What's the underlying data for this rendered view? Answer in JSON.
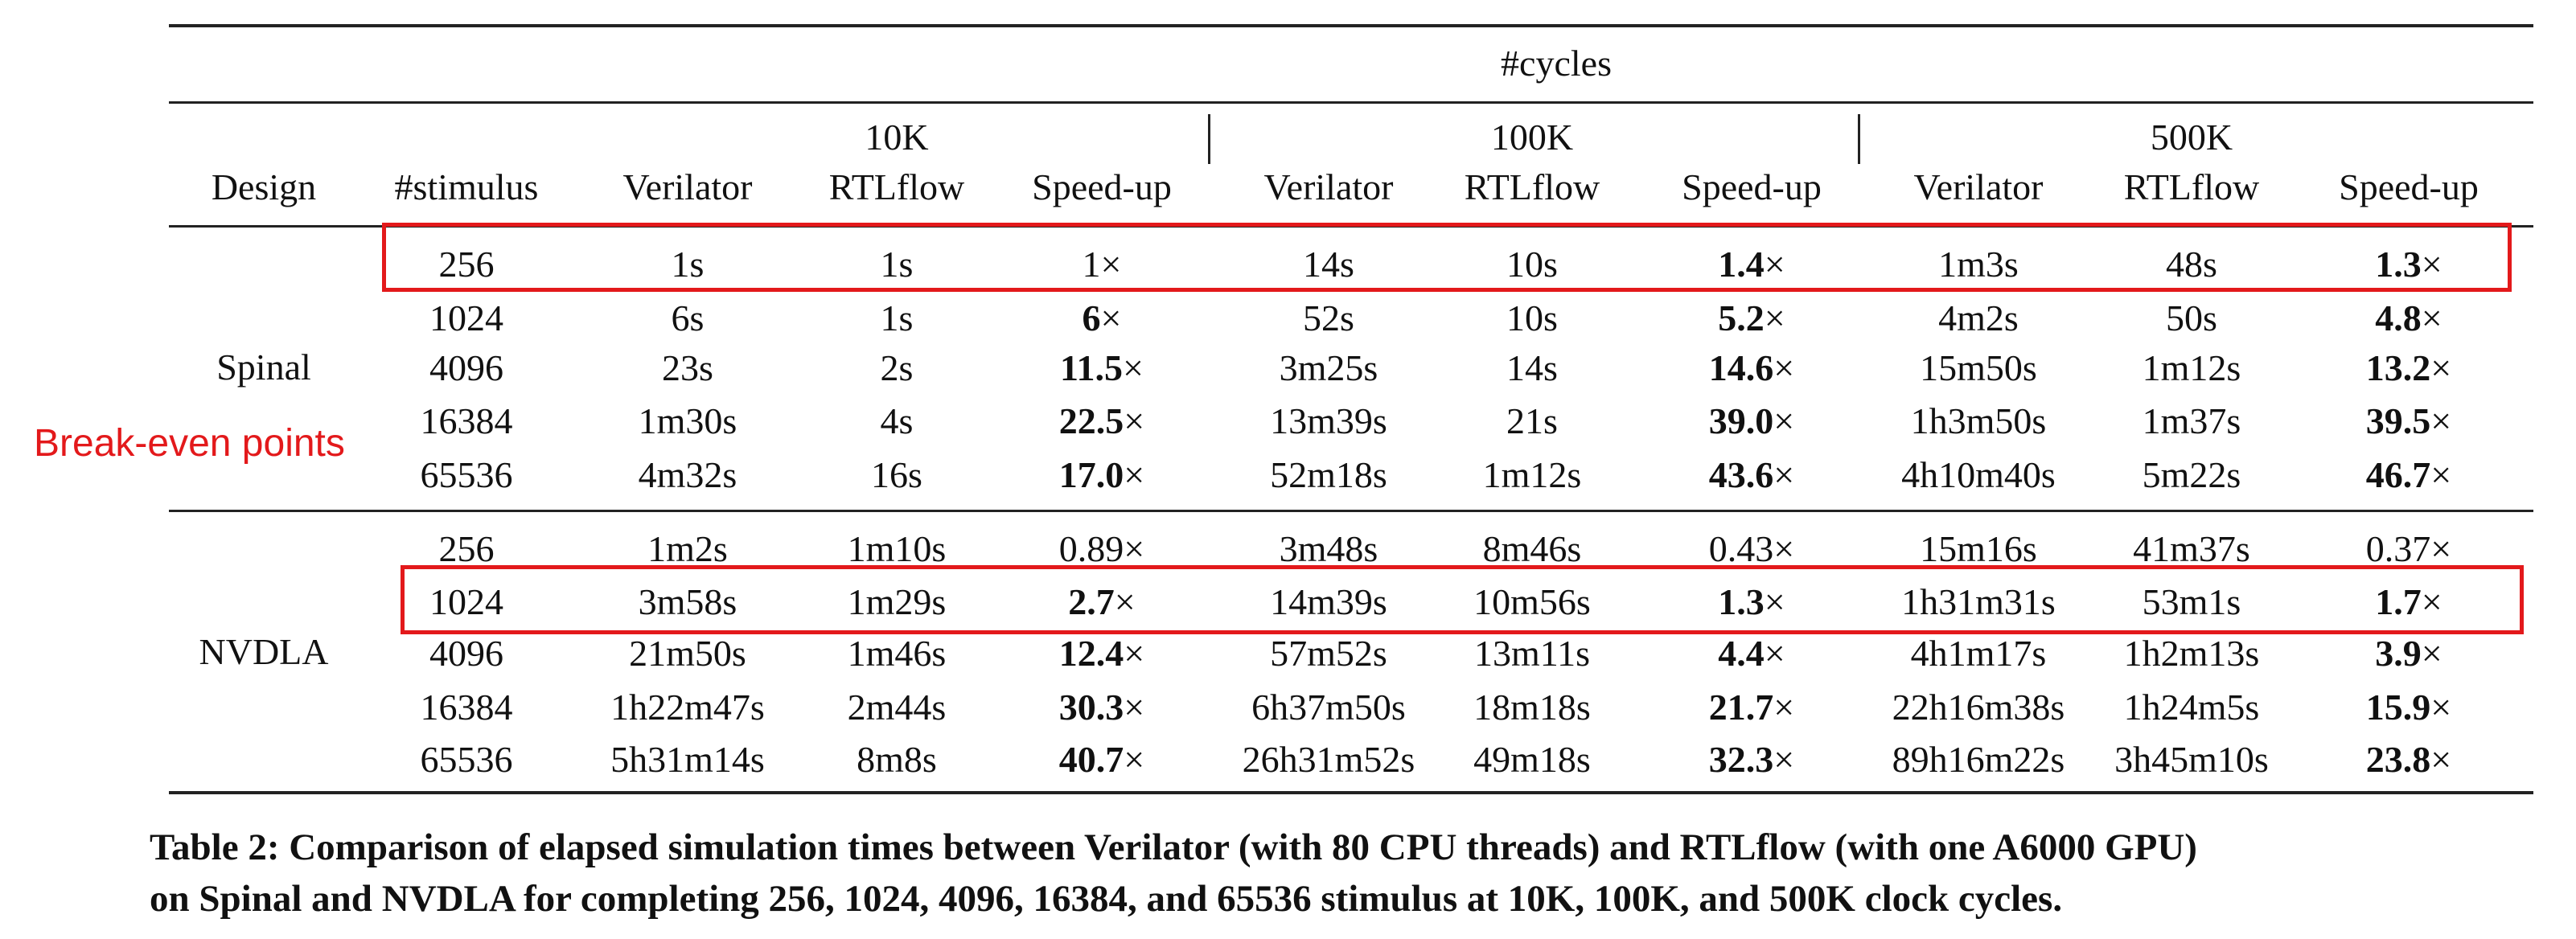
{
  "table": {
    "super_header": "#cycles",
    "cycle_groups": [
      "10K",
      "100K",
      "500K"
    ],
    "col_headers": [
      "Design",
      "#stimulus",
      "Verilator",
      "RTLflow",
      "Speed-up",
      "Verilator",
      "RTLflow",
      "Speed-up",
      "Verilator",
      "RTLflow",
      "Speed-up"
    ],
    "groups": [
      {
        "design": "Spinal",
        "rows": [
          {
            "cells": [
              "256",
              "1s",
              "1s",
              "1",
              "14s",
              "10s",
              "1.4",
              "1m3s",
              "48s",
              "1.3"
            ],
            "bold": [
              false,
              false,
              false,
              false,
              false,
              false,
              true,
              false,
              false,
              true
            ]
          },
          {
            "cells": [
              "1024",
              "6s",
              "1s",
              "6",
              "52s",
              "10s",
              "5.2",
              "4m2s",
              "50s",
              "4.8"
            ],
            "bold": [
              false,
              false,
              false,
              true,
              false,
              false,
              true,
              false,
              false,
              true
            ]
          },
          {
            "cells": [
              "4096",
              "23s",
              "2s",
              "11.5",
              "3m25s",
              "14s",
              "14.6",
              "15m50s",
              "1m12s",
              "13.2"
            ],
            "bold": [
              false,
              false,
              false,
              true,
              false,
              false,
              true,
              false,
              false,
              true
            ]
          },
          {
            "cells": [
              "16384",
              "1m30s",
              "4s",
              "22.5",
              "13m39s",
              "21s",
              "39.0",
              "1h3m50s",
              "1m37s",
              "39.5"
            ],
            "bold": [
              false,
              false,
              false,
              true,
              false,
              false,
              true,
              false,
              false,
              true
            ]
          },
          {
            "cells": [
              "65536",
              "4m32s",
              "16s",
              "17.0",
              "52m18s",
              "1m12s",
              "43.6",
              "4h10m40s",
              "5m22s",
              "46.7"
            ],
            "bold": [
              false,
              false,
              false,
              true,
              false,
              false,
              true,
              false,
              false,
              true
            ]
          }
        ]
      },
      {
        "design": "NVDLA",
        "rows": [
          {
            "cells": [
              "256",
              "1m2s",
              "1m10s",
              "0.89",
              "3m48s",
              "8m46s",
              "0.43",
              "15m16s",
              "41m37s",
              "0.37"
            ],
            "bold": [
              false,
              false,
              false,
              false,
              false,
              false,
              false,
              false,
              false,
              false
            ]
          },
          {
            "cells": [
              "1024",
              "3m58s",
              "1m29s",
              "2.7",
              "14m39s",
              "10m56s",
              "1.3",
              "1h31m31s",
              "53m1s",
              "1.7"
            ],
            "bold": [
              false,
              false,
              false,
              true,
              false,
              false,
              true,
              false,
              false,
              true
            ]
          },
          {
            "cells": [
              "4096",
              "21m50s",
              "1m46s",
              "12.4",
              "57m52s",
              "13m11s",
              "4.4",
              "4h1m17s",
              "1h2m13s",
              "3.9"
            ],
            "bold": [
              false,
              false,
              false,
              true,
              false,
              false,
              true,
              false,
              false,
              true
            ]
          },
          {
            "cells": [
              "16384",
              "1h22m47s",
              "2m44s",
              "30.3",
              "6h37m50s",
              "18m18s",
              "21.7",
              "22h16m38s",
              "1h24m5s",
              "15.9"
            ],
            "bold": [
              false,
              false,
              false,
              true,
              false,
              false,
              true,
              false,
              false,
              true
            ]
          },
          {
            "cells": [
              "65536",
              "5h31m14s",
              "8m8s",
              "40.7",
              "26h31m52s",
              "49m18s",
              "32.3",
              "89h16m22s",
              "3h45m10s",
              "23.8"
            ],
            "bold": [
              false,
              false,
              false,
              true,
              false,
              false,
              true,
              false,
              false,
              true
            ]
          }
        ]
      }
    ],
    "times_symbol": "×"
  },
  "annotation": {
    "label": "Break-even points",
    "color": "#e3191b"
  },
  "caption": {
    "line1": "Table 2: Comparison of elapsed simulation times between Verilator (with 80 CPU threads) and RTLflow (with one A6000 GPU)",
    "line2": "on Spinal and NVDLA for completing 256, 1024, 4096, 16384, and 65536 stimulus at 10K, 100K, and 500K clock cycles."
  }
}
